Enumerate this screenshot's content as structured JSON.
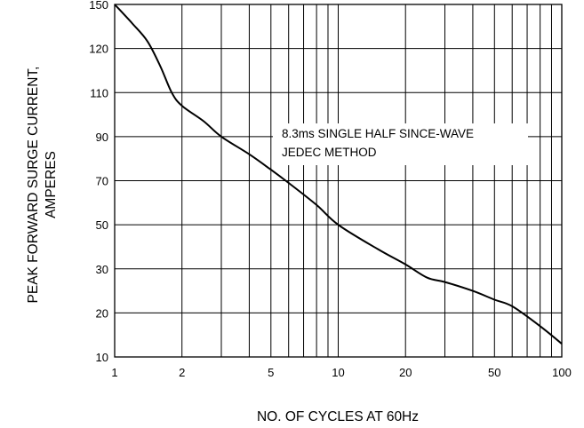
{
  "chart_data": {
    "type": "line",
    "x_scale": "log",
    "x_ticks": [
      1,
      2,
      5,
      10,
      20,
      50,
      100
    ],
    "x_tick_labels": [
      "1",
      "2",
      "5",
      "10",
      "20",
      "50",
      "100"
    ],
    "y_tick_labels": [
      "10",
      "20",
      "30",
      "50",
      "70",
      "90",
      "110",
      "120",
      "150"
    ],
    "xlim": [
      1,
      100
    ],
    "grid": true,
    "xlabel": "NO. OF CYCLES AT 60Hz",
    "ylabel_line1": "PEAK FORWARD SURGE CURRENT,",
    "ylabel_line2": "AMPERES",
    "annotation_line1": "8.3ms SINGLE HALF SINCE-WAVE",
    "annotation_line2": "JEDEC METHOD",
    "series": [
      {
        "x": [
          1,
          1.2,
          1.4,
          1.6,
          1.8,
          2,
          2.5,
          3,
          4,
          5,
          6,
          8,
          10,
          15,
          20,
          25,
          30,
          40,
          50,
          60,
          80,
          100
        ],
        "y": [
          150,
          137,
          125,
          116,
          110,
          104,
          97,
          90,
          82,
          75,
          69,
          59,
          50,
          39,
          32,
          28,
          27,
          25,
          23,
          21.5,
          17,
          13
        ]
      }
    ]
  }
}
